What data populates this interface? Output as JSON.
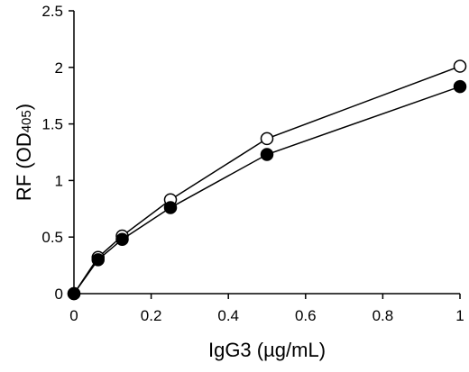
{
  "chart_data": {
    "type": "line",
    "title": "",
    "xlabel": "IgG3 (µg/mL)",
    "ylabel_main": "RF (OD",
    "ylabel_sub": "405",
    "ylabel_end": ")",
    "xlim": [
      0,
      1
    ],
    "ylim": [
      0,
      2.5
    ],
    "x_ticks": [
      0,
      0.2,
      0.4,
      0.6,
      0.8,
      1
    ],
    "x_tick_labels": [
      "0",
      "0.2",
      "0.4",
      "0.6",
      "0.8",
      "1"
    ],
    "y_ticks": [
      0,
      0.5,
      1,
      1.5,
      2,
      2.5
    ],
    "y_tick_labels": [
      "0",
      "0.5",
      "1",
      "1.5",
      "2",
      "2.5"
    ],
    "grid": false,
    "series": [
      {
        "marker": "open-circle",
        "x": [
          0,
          0.0625,
          0.125,
          0.25,
          0.5,
          1
        ],
        "y": [
          0,
          0.32,
          0.51,
          0.83,
          1.37,
          2.01
        ]
      },
      {
        "marker": "filled-circle",
        "x": [
          0,
          0.0625,
          0.125,
          0.25,
          0.5,
          1
        ],
        "y": [
          0,
          0.3,
          0.48,
          0.76,
          1.23,
          1.83
        ]
      }
    ]
  }
}
